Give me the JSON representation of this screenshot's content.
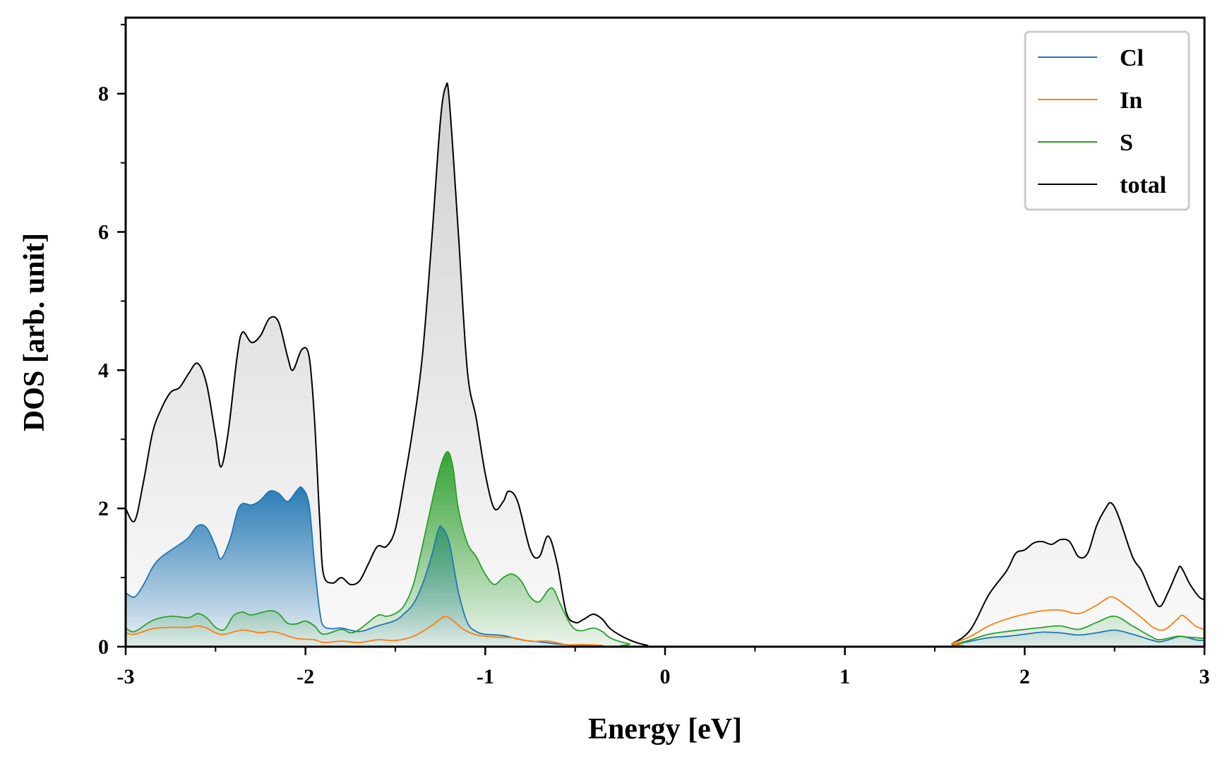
{
  "chart_data": {
    "type": "line",
    "title": "",
    "xlabel": "Energy [eV]",
    "ylabel": "DOS [arb. unit]",
    "xlim": [
      -3,
      3
    ],
    "ylim": [
      0,
      9.1
    ],
    "xticks": [
      -3,
      -2,
      -1,
      0,
      1,
      2,
      3
    ],
    "xtick_labels": [
      "-3",
      "-2",
      "-1",
      "0",
      "1",
      "2",
      "3"
    ],
    "yticks": [
      0,
      2,
      4,
      6,
      8
    ],
    "ytick_labels": [
      "0",
      "2",
      "4",
      "6",
      "8"
    ],
    "grid": false,
    "legend_position": "top-right",
    "series": [
      {
        "name": "Cl",
        "color": "#1f77b4",
        "filled": true,
        "points": [
          [
            -3.0,
            0.78
          ],
          [
            -2.95,
            0.72
          ],
          [
            -2.9,
            0.9
          ],
          [
            -2.85,
            1.15
          ],
          [
            -2.8,
            1.3
          ],
          [
            -2.7,
            1.48
          ],
          [
            -2.65,
            1.58
          ],
          [
            -2.6,
            1.75
          ],
          [
            -2.55,
            1.72
          ],
          [
            -2.5,
            1.45
          ],
          [
            -2.47,
            1.27
          ],
          [
            -2.42,
            1.55
          ],
          [
            -2.38,
            1.95
          ],
          [
            -2.35,
            2.07
          ],
          [
            -2.3,
            2.05
          ],
          [
            -2.25,
            2.12
          ],
          [
            -2.2,
            2.25
          ],
          [
            -2.15,
            2.22
          ],
          [
            -2.1,
            2.1
          ],
          [
            -2.05,
            2.25
          ],
          [
            -2.02,
            2.3
          ],
          [
            -1.98,
            2.05
          ],
          [
            -1.95,
            1.2
          ],
          [
            -1.92,
            0.5
          ],
          [
            -1.9,
            0.3
          ],
          [
            -1.85,
            0.26
          ],
          [
            -1.8,
            0.27
          ],
          [
            -1.7,
            0.22
          ],
          [
            -1.6,
            0.3
          ],
          [
            -1.5,
            0.38
          ],
          [
            -1.45,
            0.48
          ],
          [
            -1.4,
            0.62
          ],
          [
            -1.35,
            0.9
          ],
          [
            -1.3,
            1.3
          ],
          [
            -1.26,
            1.7
          ],
          [
            -1.24,
            1.72
          ],
          [
            -1.2,
            1.5
          ],
          [
            -1.15,
            0.8
          ],
          [
            -1.1,
            0.35
          ],
          [
            -1.05,
            0.22
          ],
          [
            -1.0,
            0.18
          ],
          [
            -0.9,
            0.16
          ],
          [
            -0.8,
            0.1
          ],
          [
            -0.7,
            0.07
          ],
          [
            -0.6,
            0.04
          ],
          [
            -0.5,
            0.02
          ],
          [
            -0.4,
            0.01
          ],
          [
            -0.3,
            0.0
          ],
          [
            1.5,
            0.0
          ],
          [
            1.6,
            0.03
          ],
          [
            1.7,
            0.08
          ],
          [
            1.8,
            0.13
          ],
          [
            1.9,
            0.15
          ],
          [
            2.0,
            0.18
          ],
          [
            2.1,
            0.21
          ],
          [
            2.2,
            0.2
          ],
          [
            2.3,
            0.17
          ],
          [
            2.4,
            0.2
          ],
          [
            2.5,
            0.24
          ],
          [
            2.6,
            0.18
          ],
          [
            2.7,
            0.1
          ],
          [
            2.75,
            0.07
          ],
          [
            2.8,
            0.1
          ],
          [
            2.87,
            0.15
          ],
          [
            2.95,
            0.1
          ],
          [
            3.0,
            0.09
          ]
        ]
      },
      {
        "name": "In",
        "color": "#ff7f0e",
        "filled": false,
        "points": [
          [
            -3.0,
            0.2
          ],
          [
            -2.95,
            0.18
          ],
          [
            -2.85,
            0.26
          ],
          [
            -2.75,
            0.28
          ],
          [
            -2.65,
            0.28
          ],
          [
            -2.6,
            0.3
          ],
          [
            -2.55,
            0.27
          ],
          [
            -2.5,
            0.2
          ],
          [
            -2.45,
            0.18
          ],
          [
            -2.35,
            0.24
          ],
          [
            -2.25,
            0.2
          ],
          [
            -2.2,
            0.22
          ],
          [
            -2.15,
            0.2
          ],
          [
            -2.05,
            0.12
          ],
          [
            -1.95,
            0.1
          ],
          [
            -1.9,
            0.06
          ],
          [
            -1.8,
            0.08
          ],
          [
            -1.7,
            0.06
          ],
          [
            -1.6,
            0.1
          ],
          [
            -1.5,
            0.09
          ],
          [
            -1.4,
            0.15
          ],
          [
            -1.3,
            0.3
          ],
          [
            -1.25,
            0.4
          ],
          [
            -1.22,
            0.44
          ],
          [
            -1.18,
            0.38
          ],
          [
            -1.12,
            0.25
          ],
          [
            -1.05,
            0.17
          ],
          [
            -0.95,
            0.14
          ],
          [
            -0.85,
            0.13
          ],
          [
            -0.75,
            0.08
          ],
          [
            -0.65,
            0.08
          ],
          [
            -0.55,
            0.03
          ],
          [
            -0.45,
            0.03
          ],
          [
            -0.35,
            0.02
          ],
          [
            -0.25,
            0.0
          ],
          [
            1.5,
            0.0
          ],
          [
            1.6,
            0.05
          ],
          [
            1.7,
            0.15
          ],
          [
            1.8,
            0.3
          ],
          [
            1.9,
            0.4
          ],
          [
            2.0,
            0.47
          ],
          [
            2.1,
            0.52
          ],
          [
            2.2,
            0.53
          ],
          [
            2.3,
            0.48
          ],
          [
            2.4,
            0.6
          ],
          [
            2.48,
            0.72
          ],
          [
            2.55,
            0.62
          ],
          [
            2.65,
            0.42
          ],
          [
            2.72,
            0.27
          ],
          [
            2.78,
            0.25
          ],
          [
            2.85,
            0.4
          ],
          [
            2.88,
            0.45
          ],
          [
            2.95,
            0.3
          ],
          [
            3.0,
            0.25
          ]
        ]
      },
      {
        "name": "S",
        "color": "#2ca02c",
        "filled": true,
        "points": [
          [
            -3.0,
            0.27
          ],
          [
            -2.95,
            0.22
          ],
          [
            -2.85,
            0.38
          ],
          [
            -2.75,
            0.44
          ],
          [
            -2.65,
            0.42
          ],
          [
            -2.6,
            0.48
          ],
          [
            -2.55,
            0.42
          ],
          [
            -2.5,
            0.28
          ],
          [
            -2.45,
            0.25
          ],
          [
            -2.4,
            0.45
          ],
          [
            -2.35,
            0.5
          ],
          [
            -2.3,
            0.46
          ],
          [
            -2.2,
            0.52
          ],
          [
            -2.15,
            0.48
          ],
          [
            -2.1,
            0.34
          ],
          [
            -2.05,
            0.33
          ],
          [
            -2.0,
            0.37
          ],
          [
            -1.95,
            0.3
          ],
          [
            -1.9,
            0.18
          ],
          [
            -1.8,
            0.25
          ],
          [
            -1.75,
            0.2
          ],
          [
            -1.7,
            0.25
          ],
          [
            -1.6,
            0.45
          ],
          [
            -1.55,
            0.44
          ],
          [
            -1.5,
            0.48
          ],
          [
            -1.45,
            0.6
          ],
          [
            -1.4,
            0.9
          ],
          [
            -1.35,
            1.45
          ],
          [
            -1.3,
            2.05
          ],
          [
            -1.25,
            2.6
          ],
          [
            -1.21,
            2.82
          ],
          [
            -1.18,
            2.6
          ],
          [
            -1.15,
            2.0
          ],
          [
            -1.1,
            1.5
          ],
          [
            -1.05,
            1.3
          ],
          [
            -1.0,
            1.05
          ],
          [
            -0.95,
            0.9
          ],
          [
            -0.9,
            1.0
          ],
          [
            -0.85,
            1.05
          ],
          [
            -0.8,
            0.95
          ],
          [
            -0.75,
            0.72
          ],
          [
            -0.7,
            0.65
          ],
          [
            -0.65,
            0.82
          ],
          [
            -0.62,
            0.83
          ],
          [
            -0.58,
            0.6
          ],
          [
            -0.52,
            0.3
          ],
          [
            -0.47,
            0.23
          ],
          [
            -0.4,
            0.27
          ],
          [
            -0.35,
            0.22
          ],
          [
            -0.3,
            0.12
          ],
          [
            -0.2,
            0.04
          ],
          [
            -0.1,
            0.0
          ],
          [
            1.5,
            0.0
          ],
          [
            1.6,
            0.03
          ],
          [
            1.7,
            0.1
          ],
          [
            1.8,
            0.18
          ],
          [
            1.9,
            0.22
          ],
          [
            2.0,
            0.25
          ],
          [
            2.1,
            0.28
          ],
          [
            2.2,
            0.3
          ],
          [
            2.3,
            0.25
          ],
          [
            2.4,
            0.35
          ],
          [
            2.5,
            0.44
          ],
          [
            2.6,
            0.3
          ],
          [
            2.7,
            0.15
          ],
          [
            2.75,
            0.1
          ],
          [
            2.85,
            0.15
          ],
          [
            2.9,
            0.14
          ],
          [
            3.0,
            0.12
          ]
        ]
      },
      {
        "name": "total",
        "color": "#000000",
        "filled": true,
        "points": [
          [
            -3.0,
            2.0
          ],
          [
            -2.95,
            1.82
          ],
          [
            -2.9,
            2.4
          ],
          [
            -2.85,
            3.1
          ],
          [
            -2.8,
            3.45
          ],
          [
            -2.75,
            3.68
          ],
          [
            -2.7,
            3.75
          ],
          [
            -2.65,
            3.95
          ],
          [
            -2.6,
            4.1
          ],
          [
            -2.55,
            3.8
          ],
          [
            -2.5,
            3.05
          ],
          [
            -2.47,
            2.6
          ],
          [
            -2.43,
            3.1
          ],
          [
            -2.38,
            4.2
          ],
          [
            -2.35,
            4.55
          ],
          [
            -2.3,
            4.4
          ],
          [
            -2.25,
            4.5
          ],
          [
            -2.2,
            4.75
          ],
          [
            -2.15,
            4.7
          ],
          [
            -2.1,
            4.2
          ],
          [
            -2.07,
            4.0
          ],
          [
            -2.02,
            4.3
          ],
          [
            -1.98,
            4.2
          ],
          [
            -1.95,
            3.3
          ],
          [
            -1.92,
            1.8
          ],
          [
            -1.9,
            1.05
          ],
          [
            -1.85,
            0.92
          ],
          [
            -1.8,
            1.0
          ],
          [
            -1.75,
            0.9
          ],
          [
            -1.7,
            0.95
          ],
          [
            -1.65,
            1.2
          ],
          [
            -1.6,
            1.45
          ],
          [
            -1.55,
            1.45
          ],
          [
            -1.5,
            1.7
          ],
          [
            -1.45,
            2.4
          ],
          [
            -1.4,
            3.2
          ],
          [
            -1.35,
            4.2
          ],
          [
            -1.3,
            5.8
          ],
          [
            -1.25,
            7.6
          ],
          [
            -1.22,
            8.1
          ],
          [
            -1.2,
            7.9
          ],
          [
            -1.15,
            6.0
          ],
          [
            -1.1,
            4.0
          ],
          [
            -1.05,
            3.3
          ],
          [
            -1.0,
            2.5
          ],
          [
            -0.95,
            2.0
          ],
          [
            -0.9,
            2.1
          ],
          [
            -0.87,
            2.25
          ],
          [
            -0.82,
            2.1
          ],
          [
            -0.75,
            1.4
          ],
          [
            -0.7,
            1.3
          ],
          [
            -0.65,
            1.6
          ],
          [
            -0.6,
            1.2
          ],
          [
            -0.55,
            0.5
          ],
          [
            -0.5,
            0.35
          ],
          [
            -0.45,
            0.4
          ],
          [
            -0.4,
            0.47
          ],
          [
            -0.35,
            0.4
          ],
          [
            -0.3,
            0.25
          ],
          [
            -0.2,
            0.1
          ],
          [
            -0.1,
            0.02
          ],
          [
            0.0,
            0.0
          ],
          [
            1.5,
            0.0
          ],
          [
            1.6,
            0.05
          ],
          [
            1.7,
            0.25
          ],
          [
            1.8,
            0.75
          ],
          [
            1.9,
            1.1
          ],
          [
            1.95,
            1.35
          ],
          [
            2.0,
            1.4
          ],
          [
            2.05,
            1.5
          ],
          [
            2.1,
            1.52
          ],
          [
            2.15,
            1.48
          ],
          [
            2.2,
            1.55
          ],
          [
            2.25,
            1.52
          ],
          [
            2.3,
            1.3
          ],
          [
            2.35,
            1.35
          ],
          [
            2.4,
            1.75
          ],
          [
            2.45,
            2.0
          ],
          [
            2.48,
            2.08
          ],
          [
            2.52,
            1.9
          ],
          [
            2.6,
            1.3
          ],
          [
            2.65,
            1.1
          ],
          [
            2.7,
            0.8
          ],
          [
            2.75,
            0.58
          ],
          [
            2.8,
            0.8
          ],
          [
            2.85,
            1.1
          ],
          [
            2.87,
            1.15
          ],
          [
            2.92,
            0.9
          ],
          [
            2.97,
            0.72
          ],
          [
            3.0,
            0.68
          ]
        ]
      }
    ]
  }
}
